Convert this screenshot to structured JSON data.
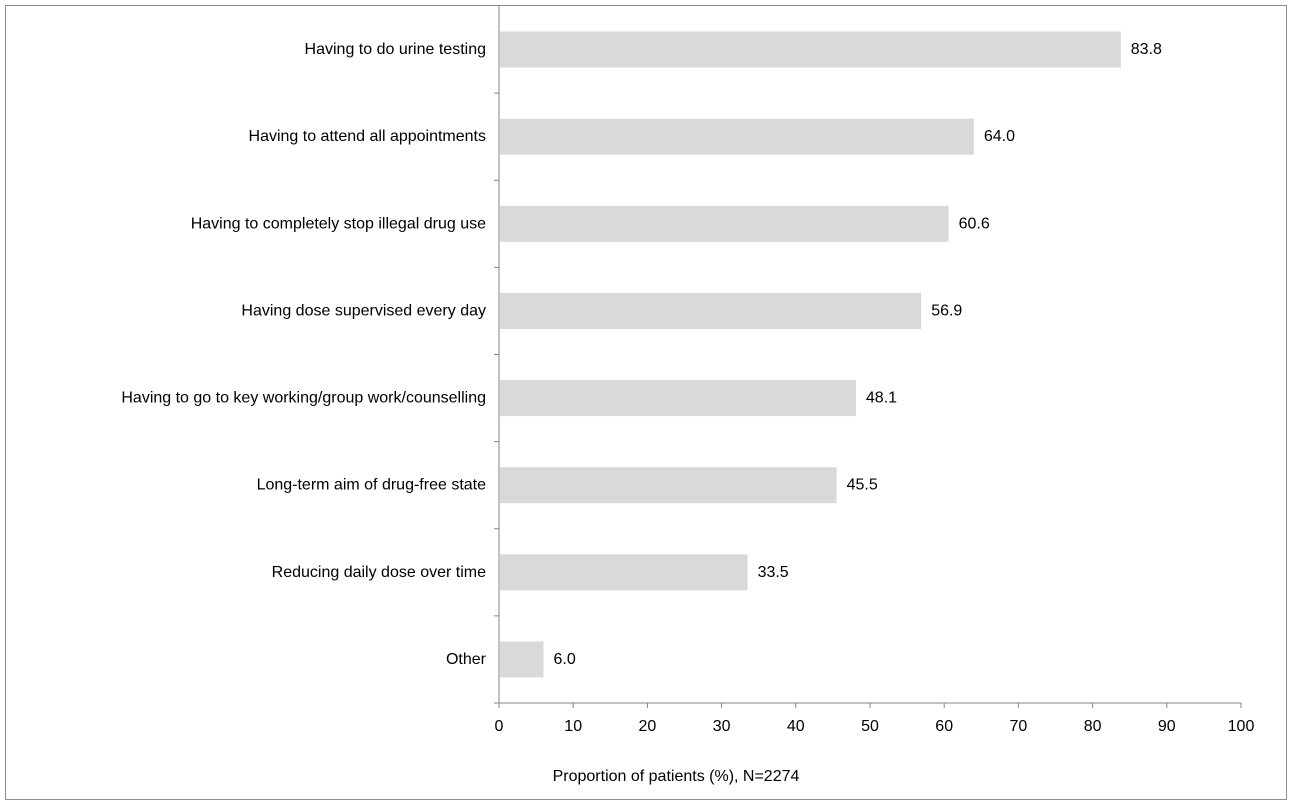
{
  "chart_data": {
    "type": "bar",
    "orientation": "horizontal",
    "categories": [
      "Having to do urine testing",
      "Having to attend all appointments",
      "Having to completely stop illegal drug use",
      "Having dose supervised every day",
      "Having to go to key working/group work/counselling",
      "Long-term aim of drug-free state",
      "Reducing daily dose over time",
      "Other"
    ],
    "values": [
      83.8,
      64.0,
      60.6,
      56.9,
      48.1,
      45.5,
      33.5,
      6.0
    ],
    "value_labels": [
      "83.8",
      "64.0",
      "60.6",
      "56.9",
      "48.1",
      "45.5",
      "33.5",
      "6.0"
    ],
    "xlabel": "Proportion of patients (%), N=2274",
    "ylabel": "",
    "xlim": [
      0,
      100
    ],
    "x_ticks": [
      0,
      10,
      20,
      30,
      40,
      50,
      60,
      70,
      80,
      90,
      100
    ],
    "grid": false,
    "legend": "none",
    "bar_color": "#d9d9d9",
    "axis_color": "#868686"
  }
}
